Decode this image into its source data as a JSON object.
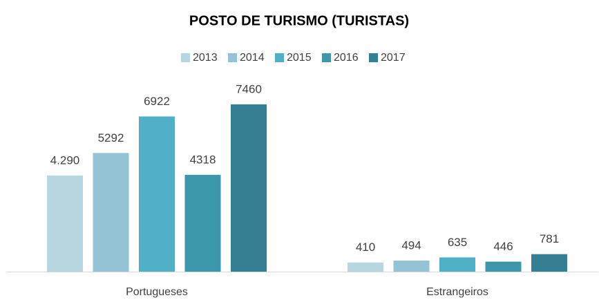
{
  "chart_data": {
    "type": "bar",
    "title": "POSTO DE TURISMO (TURISTAS)",
    "categories": [
      "Portugueses",
      "Estrangeiros"
    ],
    "series": [
      {
        "name": "2013",
        "color": "#b8d6e0",
        "values": [
          4290,
          410
        ],
        "value_labels": [
          "4.290",
          "410"
        ]
      },
      {
        "name": "2014",
        "color": "#93c3d5",
        "values": [
          5292,
          494
        ]
      },
      {
        "name": "2015",
        "color": "#4fb0c6",
        "values": [
          6922,
          635
        ]
      },
      {
        "name": "2016",
        "color": "#3d97ab",
        "values": [
          4318,
          446
        ]
      },
      {
        "name": "2017",
        "color": "#357f92",
        "values": [
          7460,
          781
        ]
      }
    ],
    "ylim": [
      0,
      8000
    ],
    "legend": "top"
  }
}
